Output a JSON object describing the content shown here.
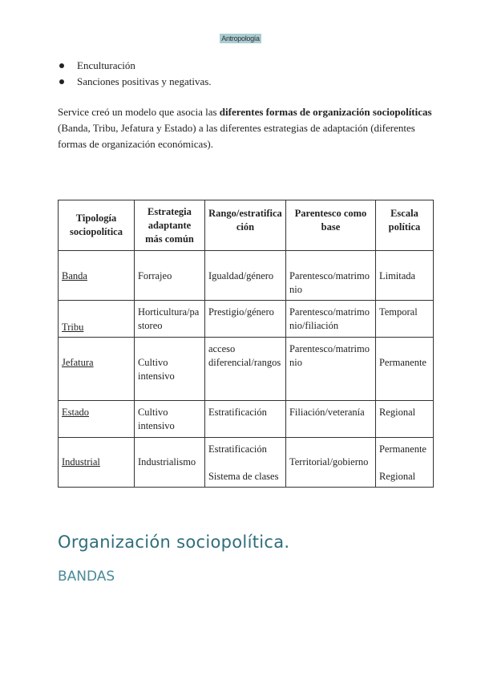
{
  "header": {
    "title": "Antropología"
  },
  "bullets": [
    "Enculturación",
    "Sanciones positivas y negativas."
  ],
  "paragraph": {
    "before": " Service creó un modelo que asocia las ",
    "bold": "diferentes formas de organización sociopolíticas",
    "after": " (Banda, Tribu, Jefatura y Estado) a las diferentes estrategias de adaptación (diferentes formas de organización económicas)."
  },
  "table": {
    "headers": [
      "Tipología sociopolítica",
      "Estrategia adaptante más común",
      "Rango/estratificación",
      "Parentesco como base",
      "Escala política"
    ],
    "rows": [
      [
        "Banda",
        "Forrajeo",
        "Igualdad/género",
        "Parentesco/matrimonio",
        "Limitada"
      ],
      [
        "Tribu",
        "Horticultura/pastoreo",
        "Prestigio/género",
        "Parentesco/matrimonio/filiación",
        "Temporal"
      ],
      [
        "Jefatura",
        "Cultivo intensivo",
        "acceso diferencial/rangos",
        "Parentesco/matrimonio",
        "Permanente"
      ],
      [
        "Estado",
        "Cultivo intensivo",
        "Estratificación",
        "Filiación/veteranía",
        "Regional"
      ],
      [
        "Industrial",
        "Industrialismo",
        "Estratificación",
        "Territorial/gobierno",
        "Permanente"
      ]
    ],
    "industrial_extra": {
      "rango": "Sistema de clases",
      "escala": "Regional"
    }
  },
  "headings": {
    "h1": "Organización sociopolítica.",
    "h2": "BANDAS"
  },
  "colors": {
    "heading": "#2f6d7b",
    "header_highlight": "#a9cdd2"
  }
}
